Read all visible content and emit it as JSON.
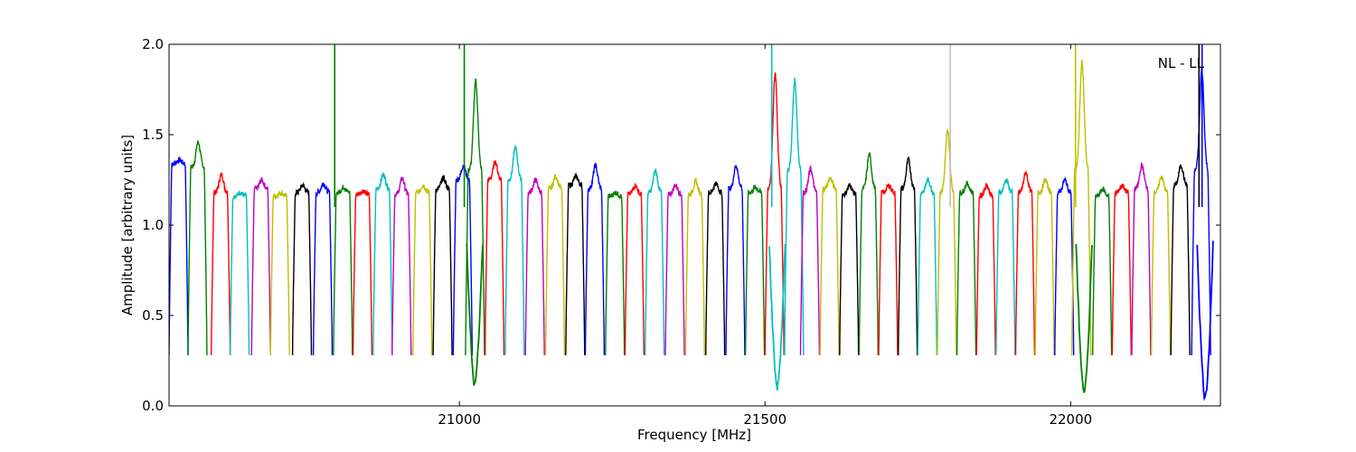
{
  "chart_data": {
    "type": "line",
    "title": "",
    "xlabel": "Frequency [MHz]",
    "ylabel": "Amplitude [arbitrary units]",
    "annotation": "NL - LL",
    "xlim": [
      20525,
      22245
    ],
    "ylim": [
      0.0,
      2.0
    ],
    "x_ticks": [
      21000,
      21500,
      22000
    ],
    "x_tick_labels": [
      "21000",
      "21500",
      "22000"
    ],
    "y_ticks": [
      0.0,
      0.5,
      1.0,
      1.5,
      2.0
    ],
    "y_tick_labels": [
      "0.0",
      "0.5",
      "1.0",
      "1.5",
      "2.0"
    ],
    "grid": false,
    "colors": [
      "#0000ff",
      "#008000",
      "#ff0000",
      "#00bfbf",
      "#bf00bf",
      "#bfbf00",
      "#000000"
    ],
    "subband_width_mhz": 31,
    "subbands": [
      {
        "start": 20525,
        "level": 1.34,
        "peak": 1.36,
        "color": "#0000ff"
      },
      {
        "start": 20556,
        "level": 1.32,
        "peak": 1.46,
        "color": "#008000"
      },
      {
        "start": 20594,
        "level": 1.18,
        "peak": 1.28,
        "color": "#ff0000"
      },
      {
        "start": 20625,
        "level": 1.16,
        "peak": 1.18,
        "color": "#00bfbf"
      },
      {
        "start": 20660,
        "level": 1.2,
        "peak": 1.25,
        "color": "#bf00bf"
      },
      {
        "start": 20691,
        "level": 1.16,
        "peak": 1.18,
        "color": "#bfbf00"
      },
      {
        "start": 20727,
        "level": 1.18,
        "peak": 1.22,
        "color": "#000000"
      },
      {
        "start": 20761,
        "level": 1.18,
        "peak": 1.23,
        "color": "#0000ff"
      },
      {
        "start": 20794,
        "level": 1.18,
        "peak": 1.21,
        "color": "#008000"
      },
      {
        "start": 20826,
        "level": 1.17,
        "peak": 1.19,
        "color": "#ff0000"
      },
      {
        "start": 20859,
        "level": 1.2,
        "peak": 1.28,
        "color": "#00bfbf"
      },
      {
        "start": 20890,
        "level": 1.17,
        "peak": 1.26,
        "color": "#bf00bf"
      },
      {
        "start": 20924,
        "level": 1.18,
        "peak": 1.22,
        "color": "#bfbf00"
      },
      {
        "start": 20957,
        "level": 1.2,
        "peak": 1.26,
        "color": "#000000"
      },
      {
        "start": 20990,
        "level": 1.25,
        "peak": 1.33,
        "color": "#0000ff"
      },
      {
        "start": 21010,
        "level": 1.3,
        "peak": 1.8,
        "color": "#008000"
      },
      {
        "start": 21042,
        "level": 1.25,
        "peak": 1.35,
        "color": "#ff0000"
      },
      {
        "start": 21075,
        "level": 1.25,
        "peak": 1.43,
        "color": "#00bfbf"
      },
      {
        "start": 21108,
        "level": 1.18,
        "peak": 1.25,
        "color": "#bf00bf"
      },
      {
        "start": 21141,
        "level": 1.2,
        "peak": 1.27,
        "color": "#bfbf00"
      },
      {
        "start": 21174,
        "level": 1.22,
        "peak": 1.27,
        "color": "#000000"
      },
      {
        "start": 21206,
        "level": 1.2,
        "peak": 1.33,
        "color": "#0000ff"
      },
      {
        "start": 21239,
        "level": 1.16,
        "peak": 1.18,
        "color": "#008000"
      },
      {
        "start": 21271,
        "level": 1.17,
        "peak": 1.22,
        "color": "#ff0000"
      },
      {
        "start": 21304,
        "level": 1.18,
        "peak": 1.3,
        "color": "#00bfbf"
      },
      {
        "start": 21337,
        "level": 1.17,
        "peak": 1.22,
        "color": "#bf00bf"
      },
      {
        "start": 21370,
        "level": 1.17,
        "peak": 1.24,
        "color": "#bfbf00"
      },
      {
        "start": 21403,
        "level": 1.18,
        "peak": 1.23,
        "color": "#000000"
      },
      {
        "start": 21436,
        "level": 1.2,
        "peak": 1.33,
        "color": "#0000ff"
      },
      {
        "start": 21468,
        "level": 1.18,
        "peak": 1.21,
        "color": "#008000"
      },
      {
        "start": 21500,
        "level": 1.2,
        "peak": 1.84,
        "color": "#ff0000"
      },
      {
        "start": 21532,
        "level": 1.3,
        "peak": 1.8,
        "color": "#00bfbf"
      },
      {
        "start": 21558,
        "level": 1.18,
        "peak": 1.31,
        "color": "#bf00bf"
      },
      {
        "start": 21590,
        "level": 1.2,
        "peak": 1.26,
        "color": "#bfbf00"
      },
      {
        "start": 21622,
        "level": 1.17,
        "peak": 1.22,
        "color": "#000000"
      },
      {
        "start": 21654,
        "level": 1.2,
        "peak": 1.39,
        "color": "#008000"
      },
      {
        "start": 21686,
        "level": 1.18,
        "peak": 1.22,
        "color": "#ff0000"
      },
      {
        "start": 21718,
        "level": 1.2,
        "peak": 1.36,
        "color": "#000000"
      },
      {
        "start": 21750,
        "level": 1.18,
        "peak": 1.25,
        "color": "#00bfbf"
      },
      {
        "start": 21782,
        "level": 1.18,
        "peak": 1.52,
        "color": "#bfbf00"
      },
      {
        "start": 21814,
        "level": 1.18,
        "peak": 1.23,
        "color": "#008000"
      },
      {
        "start": 21846,
        "level": 1.16,
        "peak": 1.22,
        "color": "#ff0000"
      },
      {
        "start": 21878,
        "level": 1.18,
        "peak": 1.25,
        "color": "#00bfbf"
      },
      {
        "start": 21910,
        "level": 1.18,
        "peak": 1.29,
        "color": "#ff0000"
      },
      {
        "start": 21942,
        "level": 1.18,
        "peak": 1.25,
        "color": "#bfbf00"
      },
      {
        "start": 21974,
        "level": 1.18,
        "peak": 1.25,
        "color": "#0000ff"
      },
      {
        "start": 22002,
        "level": 1.3,
        "peak": 1.9,
        "color": "#bfbf00"
      },
      {
        "start": 22036,
        "level": 1.16,
        "peak": 1.2,
        "color": "#008000"
      },
      {
        "start": 22068,
        "level": 1.18,
        "peak": 1.22,
        "color": "#ff0000"
      },
      {
        "start": 22100,
        "level": 1.2,
        "peak": 1.33,
        "color": "#bf00bf"
      },
      {
        "start": 22132,
        "level": 1.18,
        "peak": 1.27,
        "color": "#bfbf00"
      },
      {
        "start": 22164,
        "level": 1.22,
        "peak": 1.33,
        "color": "#000000"
      },
      {
        "start": 22198,
        "level": 1.3,
        "peak": 1.86,
        "color": "#0000ff"
      }
    ],
    "dips": [
      {
        "x": 21025,
        "y": 0.11
      },
      {
        "x": 21520,
        "y": 0.1
      },
      {
        "x": 22022,
        "y": 0.06
      },
      {
        "x": 22220,
        "y": 0.04
      }
    ],
    "spikes": [
      {
        "x": 20796,
        "y": 2.0,
        "color": "#008000"
      },
      {
        "x": 21008,
        "y": 2.0,
        "color": "#008000"
      },
      {
        "x": 21511,
        "y": 2.0,
        "color": "#00bfbf"
      },
      {
        "x": 21803,
        "y": 2.0,
        "color": "#bfbfbf"
      },
      {
        "x": 22008,
        "y": 2.0,
        "color": "#bfbf00"
      },
      {
        "x": 22210,
        "y": 2.0,
        "color": "#000000"
      },
      {
        "x": 22215,
        "y": 2.0,
        "color": "#0000ff"
      }
    ]
  }
}
